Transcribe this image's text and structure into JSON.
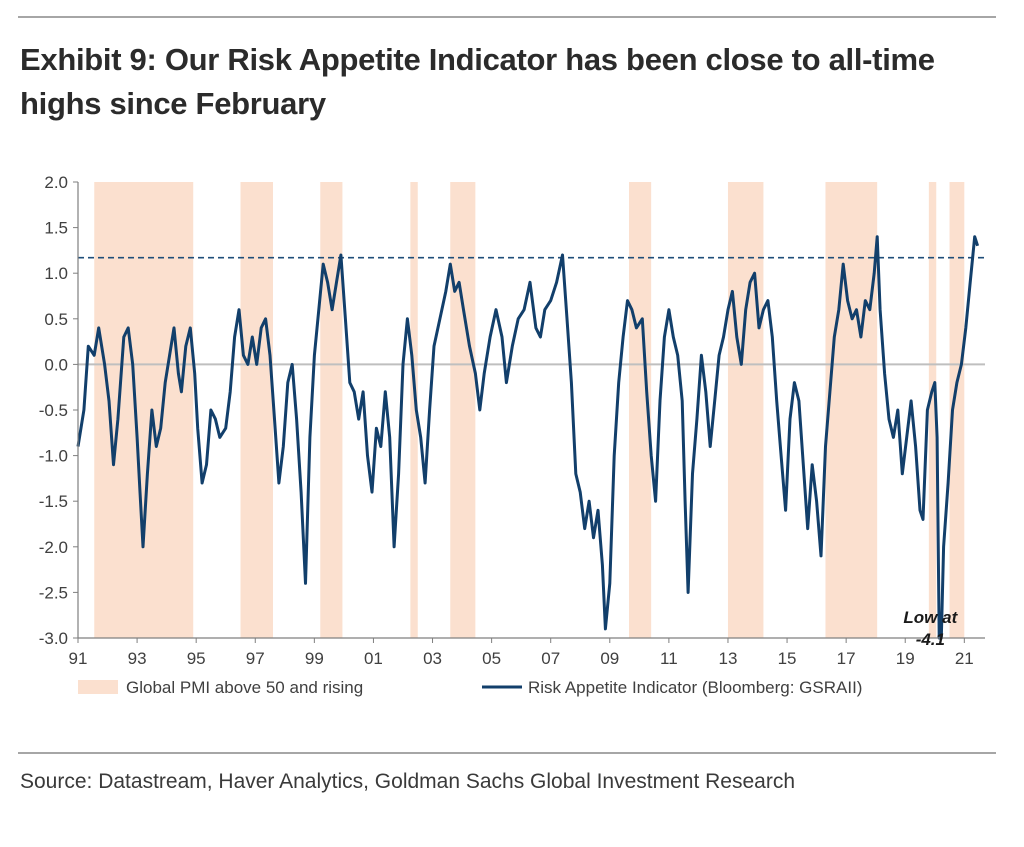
{
  "title_line1": "Exhibit 9: Our Risk Appetite Indicator has been close to all-time",
  "title_line2": "highs since February",
  "source": "Source: Datastream, Haver Analytics, Goldman Sachs Global Investment Research",
  "colors": {
    "line": "#123f6b",
    "shade": "#fbe0cf",
    "dashed": "#1f4e79",
    "zero": "#bfbfbf",
    "axis": "#7f7f7f"
  },
  "chart_data": {
    "type": "line",
    "x_range": [
      1991,
      2021.7
    ],
    "ylim": [
      -3.0,
      2.0
    ],
    "y_ticks": [
      "2.0",
      "1.5",
      "1.0",
      "0.5",
      "0.0",
      "-0.5",
      "-1.0",
      "-1.5",
      "-2.0",
      "-2.5",
      "-3.0"
    ],
    "x_tick_labels": [
      "91",
      "93",
      "95",
      "97",
      "99",
      "01",
      "03",
      "05",
      "07",
      "09",
      "11",
      "13",
      "15",
      "17",
      "19",
      "21"
    ],
    "x_tick_years": [
      1991,
      1993,
      1995,
      1997,
      1999,
      2001,
      2003,
      2005,
      2007,
      2009,
      2011,
      2013,
      2015,
      2017,
      2019,
      2021
    ],
    "reference_line": 1.17,
    "annotation": {
      "line1": "Low at",
      "line2": "-4.1",
      "x": 2019.85,
      "y": -2.75
    },
    "shaded_periods": [
      [
        1991.55,
        1994.9
      ],
      [
        1996.5,
        1997.6
      ],
      [
        1999.2,
        1999.95
      ],
      [
        2002.25,
        2002.5
      ],
      [
        2003.6,
        2004.45
      ],
      [
        2009.65,
        2010.4
      ],
      [
        2013.0,
        2014.2
      ],
      [
        2016.3,
        2018.05
      ],
      [
        2019.8,
        2020.05
      ],
      [
        2020.5,
        2021.0
      ]
    ],
    "legend": [
      {
        "label": "Global PMI above 50 and rising",
        "kind": "area"
      },
      {
        "label": "Risk Appetite Indicator (Bloomberg: GSRAII)",
        "kind": "line"
      }
    ],
    "series": [
      {
        "name": "Risk Appetite Indicator (Bloomberg: GSRAII)",
        "points": [
          [
            1991.0,
            -0.9
          ],
          [
            1991.2,
            -0.5
          ],
          [
            1991.35,
            0.2
          ],
          [
            1991.55,
            0.1
          ],
          [
            1991.7,
            0.4
          ],
          [
            1991.9,
            0.0
          ],
          [
            1992.05,
            -0.4
          ],
          [
            1992.2,
            -1.1
          ],
          [
            1992.35,
            -0.6
          ],
          [
            1992.55,
            0.3
          ],
          [
            1992.7,
            0.4
          ],
          [
            1992.85,
            0.0
          ],
          [
            1993.0,
            -0.8
          ],
          [
            1993.1,
            -1.4
          ],
          [
            1993.2,
            -2.0
          ],
          [
            1993.35,
            -1.2
          ],
          [
            1993.5,
            -0.5
          ],
          [
            1993.65,
            -0.9
          ],
          [
            1993.8,
            -0.7
          ],
          [
            1993.95,
            -0.2
          ],
          [
            1994.1,
            0.1
          ],
          [
            1994.25,
            0.4
          ],
          [
            1994.4,
            -0.1
          ],
          [
            1994.5,
            -0.3
          ],
          [
            1994.65,
            0.2
          ],
          [
            1994.8,
            0.4
          ],
          [
            1994.95,
            -0.1
          ],
          [
            1995.05,
            -0.7
          ],
          [
            1995.2,
            -1.3
          ],
          [
            1995.35,
            -1.1
          ],
          [
            1995.5,
            -0.5
          ],
          [
            1995.65,
            -0.6
          ],
          [
            1995.8,
            -0.8
          ],
          [
            1996.0,
            -0.7
          ],
          [
            1996.15,
            -0.3
          ],
          [
            1996.3,
            0.3
          ],
          [
            1996.45,
            0.6
          ],
          [
            1996.6,
            0.1
          ],
          [
            1996.75,
            0.0
          ],
          [
            1996.9,
            0.3
          ],
          [
            1997.05,
            0.0
          ],
          [
            1997.2,
            0.4
          ],
          [
            1997.35,
            0.5
          ],
          [
            1997.5,
            0.1
          ],
          [
            1997.65,
            -0.6
          ],
          [
            1997.8,
            -1.3
          ],
          [
            1997.95,
            -0.9
          ],
          [
            1998.1,
            -0.2
          ],
          [
            1998.25,
            0.0
          ],
          [
            1998.4,
            -0.6
          ],
          [
            1998.55,
            -1.4
          ],
          [
            1998.7,
            -2.4
          ],
          [
            1998.85,
            -0.8
          ],
          [
            1999.0,
            0.1
          ],
          [
            1999.15,
            0.6
          ],
          [
            1999.3,
            1.1
          ],
          [
            1999.45,
            0.9
          ],
          [
            1999.6,
            0.6
          ],
          [
            1999.75,
            0.9
          ],
          [
            1999.9,
            1.2
          ],
          [
            2000.05,
            0.5
          ],
          [
            2000.2,
            -0.2
          ],
          [
            2000.35,
            -0.3
          ],
          [
            2000.5,
            -0.6
          ],
          [
            2000.65,
            -0.3
          ],
          [
            2000.8,
            -1.0
          ],
          [
            2000.95,
            -1.4
          ],
          [
            2001.1,
            -0.7
          ],
          [
            2001.25,
            -0.9
          ],
          [
            2001.4,
            -0.3
          ],
          [
            2001.55,
            -0.8
          ],
          [
            2001.7,
            -2.0
          ],
          [
            2001.85,
            -1.2
          ],
          [
            2002.0,
            0.0
          ],
          [
            2002.15,
            0.5
          ],
          [
            2002.3,
            0.1
          ],
          [
            2002.45,
            -0.5
          ],
          [
            2002.6,
            -0.8
          ],
          [
            2002.75,
            -1.3
          ],
          [
            2002.9,
            -0.5
          ],
          [
            2003.05,
            0.2
          ],
          [
            2003.25,
            0.5
          ],
          [
            2003.45,
            0.8
          ],
          [
            2003.6,
            1.1
          ],
          [
            2003.75,
            0.8
          ],
          [
            2003.9,
            0.9
          ],
          [
            2004.05,
            0.6
          ],
          [
            2004.25,
            0.2
          ],
          [
            2004.45,
            -0.1
          ],
          [
            2004.6,
            -0.5
          ],
          [
            2004.75,
            -0.1
          ],
          [
            2004.95,
            0.3
          ],
          [
            2005.15,
            0.6
          ],
          [
            2005.35,
            0.3
          ],
          [
            2005.5,
            -0.2
          ],
          [
            2005.7,
            0.2
          ],
          [
            2005.9,
            0.5
          ],
          [
            2006.1,
            0.6
          ],
          [
            2006.3,
            0.9
          ],
          [
            2006.5,
            0.4
          ],
          [
            2006.65,
            0.3
          ],
          [
            2006.8,
            0.6
          ],
          [
            2007.0,
            0.7
          ],
          [
            2007.2,
            0.9
          ],
          [
            2007.4,
            1.2
          ],
          [
            2007.55,
            0.5
          ],
          [
            2007.7,
            -0.2
          ],
          [
            2007.85,
            -1.2
          ],
          [
            2008.0,
            -1.4
          ],
          [
            2008.15,
            -1.8
          ],
          [
            2008.3,
            -1.5
          ],
          [
            2008.45,
            -1.9
          ],
          [
            2008.6,
            -1.6
          ],
          [
            2008.75,
            -2.2
          ],
          [
            2008.85,
            -2.9
          ],
          [
            2009.0,
            -2.4
          ],
          [
            2009.15,
            -1.0
          ],
          [
            2009.3,
            -0.2
          ],
          [
            2009.45,
            0.3
          ],
          [
            2009.6,
            0.7
          ],
          [
            2009.75,
            0.6
          ],
          [
            2009.9,
            0.4
          ],
          [
            2010.1,
            0.5
          ],
          [
            2010.25,
            -0.3
          ],
          [
            2010.4,
            -1.0
          ],
          [
            2010.55,
            -1.5
          ],
          [
            2010.7,
            -0.4
          ],
          [
            2010.85,
            0.3
          ],
          [
            2011.0,
            0.6
          ],
          [
            2011.15,
            0.3
          ],
          [
            2011.3,
            0.1
          ],
          [
            2011.45,
            -0.4
          ],
          [
            2011.55,
            -1.5
          ],
          [
            2011.65,
            -2.5
          ],
          [
            2011.8,
            -1.2
          ],
          [
            2011.95,
            -0.6
          ],
          [
            2012.1,
            0.1
          ],
          [
            2012.25,
            -0.3
          ],
          [
            2012.4,
            -0.9
          ],
          [
            2012.55,
            -0.4
          ],
          [
            2012.7,
            0.1
          ],
          [
            2012.85,
            0.3
          ],
          [
            2013.0,
            0.6
          ],
          [
            2013.15,
            0.8
          ],
          [
            2013.3,
            0.3
          ],
          [
            2013.45,
            0.0
          ],
          [
            2013.6,
            0.6
          ],
          [
            2013.75,
            0.9
          ],
          [
            2013.9,
            1.0
          ],
          [
            2014.05,
            0.4
          ],
          [
            2014.2,
            0.6
          ],
          [
            2014.35,
            0.7
          ],
          [
            2014.5,
            0.3
          ],
          [
            2014.65,
            -0.4
          ],
          [
            2014.8,
            -1.0
          ],
          [
            2014.95,
            -1.6
          ],
          [
            2015.1,
            -0.6
          ],
          [
            2015.25,
            -0.2
          ],
          [
            2015.4,
            -0.4
          ],
          [
            2015.55,
            -1.1
          ],
          [
            2015.7,
            -1.8
          ],
          [
            2015.85,
            -1.1
          ],
          [
            2016.0,
            -1.5
          ],
          [
            2016.15,
            -2.1
          ],
          [
            2016.3,
            -0.9
          ],
          [
            2016.45,
            -0.3
          ],
          [
            2016.6,
            0.3
          ],
          [
            2016.75,
            0.6
          ],
          [
            2016.9,
            1.1
          ],
          [
            2017.05,
            0.7
          ],
          [
            2017.2,
            0.5
          ],
          [
            2017.35,
            0.6
          ],
          [
            2017.5,
            0.3
          ],
          [
            2017.65,
            0.7
          ],
          [
            2017.8,
            0.6
          ],
          [
            2017.95,
            1.0
          ],
          [
            2018.05,
            1.4
          ],
          [
            2018.15,
            0.6
          ],
          [
            2018.3,
            -0.1
          ],
          [
            2018.45,
            -0.6
          ],
          [
            2018.6,
            -0.8
          ],
          [
            2018.75,
            -0.5
          ],
          [
            2018.9,
            -1.2
          ],
          [
            2019.05,
            -0.8
          ],
          [
            2019.2,
            -0.4
          ],
          [
            2019.35,
            -0.9
          ],
          [
            2019.5,
            -1.6
          ],
          [
            2019.6,
            -1.7
          ],
          [
            2019.75,
            -0.5
          ],
          [
            2019.9,
            -0.3
          ],
          [
            2020.0,
            -0.2
          ],
          [
            2020.08,
            -0.8
          ],
          [
            2020.15,
            -3.0
          ],
          [
            2020.22,
            -3.0
          ],
          [
            2020.3,
            -2.0
          ],
          [
            2020.45,
            -1.3
          ],
          [
            2020.6,
            -0.5
          ],
          [
            2020.75,
            -0.2
          ],
          [
            2020.9,
            0.0
          ],
          [
            2021.05,
            0.4
          ],
          [
            2021.2,
            0.9
          ],
          [
            2021.35,
            1.4
          ],
          [
            2021.45,
            1.3
          ]
        ]
      }
    ]
  }
}
